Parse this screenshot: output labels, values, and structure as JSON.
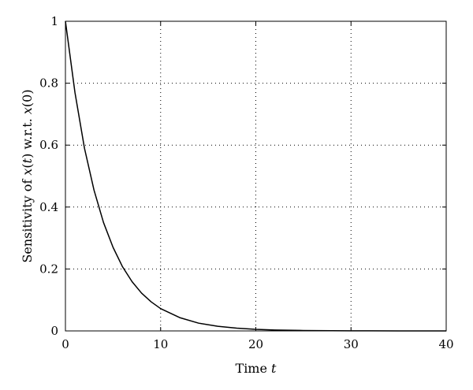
{
  "chart_data": {
    "type": "line",
    "xlabel": "Time",
    "xlabel_var": "t",
    "ylabel_parts": [
      "Sensitivity of ",
      "x",
      "(",
      "t",
      ") w.r.t. ",
      "x",
      "(0)"
    ],
    "xlim": [
      0,
      40
    ],
    "ylim": [
      0,
      1
    ],
    "x_ticks": [
      0,
      10,
      20,
      30,
      40
    ],
    "y_ticks": [
      0,
      0.2,
      0.4,
      0.6,
      0.8,
      1
    ],
    "x_tick_labels": [
      "0",
      "10",
      "20",
      "30",
      "40"
    ],
    "y_tick_labels": [
      "0",
      "0.2",
      "0.4",
      "0.6",
      "0.8",
      "1"
    ],
    "grid": true,
    "series": [
      {
        "color": "#000000",
        "x": [
          0,
          1,
          2,
          3,
          4,
          5,
          6,
          7,
          8,
          9,
          10,
          12,
          14,
          16,
          18,
          20,
          22,
          25,
          28,
          30,
          32,
          35,
          40
        ],
        "y": [
          1.0,
          0.77,
          0.59,
          0.455,
          0.35,
          0.27,
          0.207,
          0.159,
          0.122,
          0.094,
          0.072,
          0.043,
          0.025,
          0.015,
          0.009,
          0.005,
          0.003,
          0.0014,
          0.0007,
          0.0004,
          0.0002,
          0.0001,
          0.0
        ]
      }
    ]
  }
}
